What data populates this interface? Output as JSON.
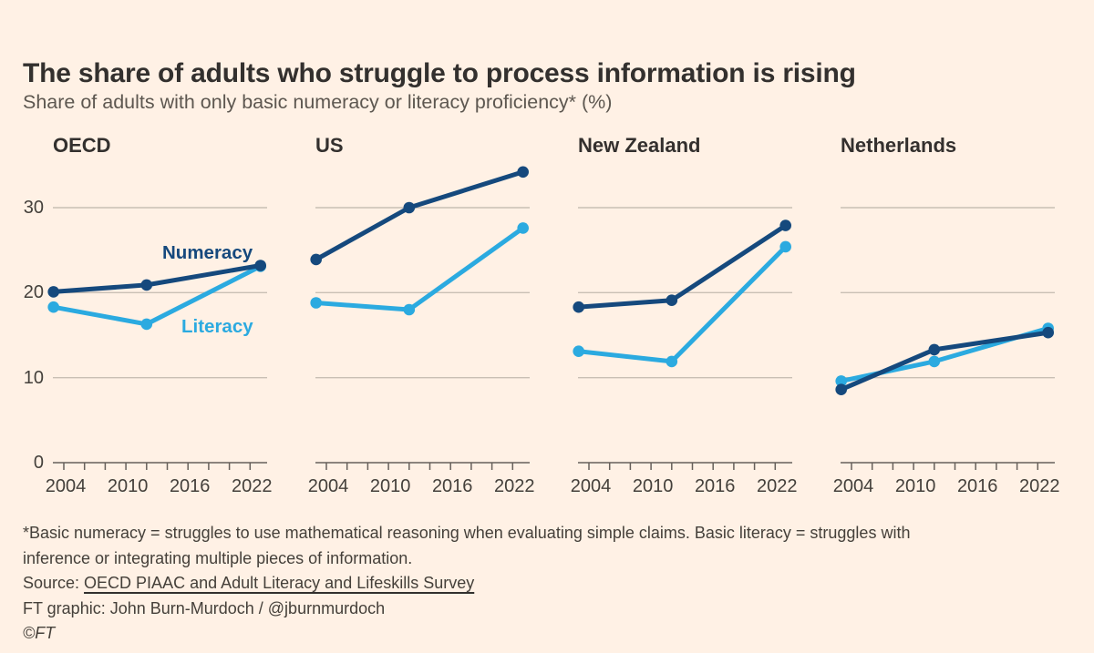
{
  "page": {
    "title": "The share of adults who struggle to process information is rising",
    "subtitle": "Share of adults with only basic numeracy or literacy proficiency* (%)"
  },
  "colors": {
    "background": "#FFF1E5",
    "numeracy": "#15497D",
    "literacy": "#2BAAE0",
    "gridline": "#C9BFB4",
    "axis": "#66605B",
    "title_text": "#33302E",
    "muted_text": "#5D5750"
  },
  "chart_data": {
    "type": "line",
    "x": [
      2003,
      2012,
      2023
    ],
    "x_axis": {
      "range": [
        2003,
        2023.7
      ],
      "minor_tick_years": [
        2004,
        2006,
        2008,
        2010,
        2012,
        2014,
        2016,
        2018,
        2020,
        2022
      ],
      "labeled_tick_years": [
        2004,
        2010,
        2016,
        2022
      ],
      "tick_labels": [
        "2004",
        "2010",
        "2016",
        "2022"
      ]
    },
    "y_axis": {
      "range": [
        0,
        36
      ],
      "ticks": [
        0,
        10,
        20,
        30
      ],
      "tick_labels": [
        "0",
        "10",
        "20",
        "30"
      ],
      "gridlines": [
        10,
        20,
        30
      ]
    },
    "grid": true,
    "legend_position": "inline-first-panel",
    "panels": [
      {
        "title": "OECD",
        "series": [
          {
            "name": "Numeracy",
            "values": [
              20.1,
              20.9,
              23.2
            ]
          },
          {
            "name": "Literacy",
            "values": [
              18.3,
              16.3,
              23.1
            ]
          }
        ]
      },
      {
        "title": "US",
        "series": [
          {
            "name": "Numeracy",
            "values": [
              23.9,
              30.0,
              34.2
            ]
          },
          {
            "name": "Literacy",
            "values": [
              18.8,
              18.0,
              27.6
            ]
          }
        ]
      },
      {
        "title": "New Zealand",
        "series": [
          {
            "name": "Numeracy",
            "values": [
              18.3,
              19.1,
              27.9
            ]
          },
          {
            "name": "Literacy",
            "values": [
              13.1,
              11.9,
              25.4
            ]
          }
        ]
      },
      {
        "title": "Netherlands",
        "series": [
          {
            "name": "Numeracy",
            "values": [
              8.6,
              13.3,
              15.3
            ]
          },
          {
            "name": "Literacy",
            "values": [
              9.6,
              11.9,
              15.8
            ]
          }
        ]
      }
    ],
    "series_labels": [
      {
        "text": "Numeracy",
        "series": "Numeracy",
        "panel": 0,
        "left": 120,
        "top": 119
      },
      {
        "text": "Literacy",
        "series": "Literacy",
        "panel": 0,
        "left": 141,
        "top": 200
      }
    ]
  },
  "footer": {
    "note_line1": "*Basic numeracy = struggles to use mathematical reasoning when evaluating simple claims. Basic literacy = struggles with",
    "note_line2": "inference or integrating multiple pieces of information.",
    "source_prefix": "Source: ",
    "source_link": "OECD PIAAC and Adult Literacy and Lifeskills Survey",
    "credit": "FT graphic: John Burn-Murdoch / @jburnmurdoch",
    "copyright": "©FT"
  }
}
